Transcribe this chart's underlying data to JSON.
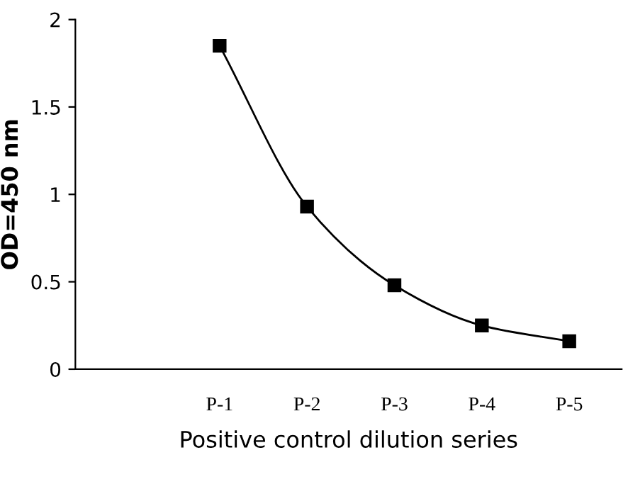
{
  "chart_data": {
    "type": "line",
    "xlabel": "Positive control dilution series",
    "ylabel": "OD=450 nm",
    "categories": [
      "P-1",
      "P-2",
      "P-3",
      "P-4",
      "P-5"
    ],
    "series": [
      {
        "color": "#000000",
        "values": [
          1.85,
          0.93,
          0.48,
          0.25,
          0.16
        ]
      }
    ],
    "ylim": [
      0,
      2
    ],
    "yticks": [
      0,
      0.5,
      1,
      1.5,
      2
    ],
    "marker": "square",
    "line_style": "solid",
    "grid": false,
    "legend": false
  }
}
